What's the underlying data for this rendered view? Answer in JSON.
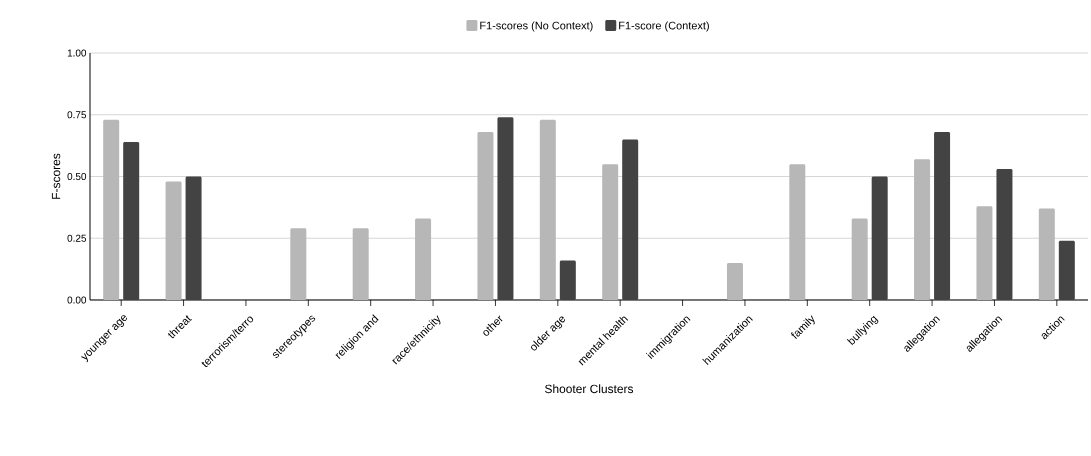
{
  "chart_data": {
    "type": "bar",
    "xlabel": "Shooter Clusters",
    "ylabel": "F-scores",
    "categories": [
      "younger age",
      "threat",
      "terrorism/terro",
      "stereotypes",
      "religion and",
      "race/ethnicity",
      "other",
      "older age",
      "mental health",
      "immigration",
      "humanization",
      "family",
      "bullying",
      "allegation",
      "allegation",
      "action"
    ],
    "series": [
      {
        "name": "F1-scores (No Context)",
        "color": "#b7b7b7",
        "values": [
          0.73,
          0.48,
          0,
          0.29,
          0.29,
          0.33,
          0.68,
          0.73,
          0.55,
          0,
          0.15,
          0.55,
          0.33,
          0.57,
          0.38,
          0.37
        ]
      },
      {
        "name": "F1-score (Context)",
        "color": "#434343",
        "values": [
          0.64,
          0.5,
          0,
          0,
          0,
          0,
          0.74,
          0.16,
          0.65,
          0,
          0,
          0,
          0.5,
          0.68,
          0.53,
          0.24
        ]
      }
    ],
    "ylim": [
      0,
      1
    ],
    "yticks": [
      {
        "value": 0,
        "label": "0.00"
      },
      {
        "value": 0.25,
        "label": "0.25"
      },
      {
        "value": 0.5,
        "label": "0.50"
      },
      {
        "value": 0.75,
        "label": "0.75"
      },
      {
        "value": 1,
        "label": "1.00"
      }
    ],
    "grid": "y",
    "legend": "top"
  }
}
